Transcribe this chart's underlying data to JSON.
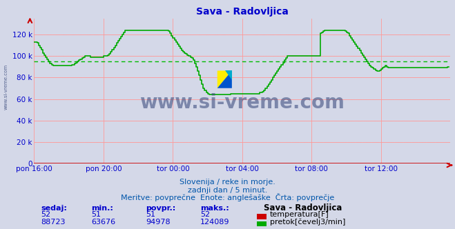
{
  "title": "Sava - Radovljica",
  "title_color": "#0000cc",
  "bg_color": "#d4d8e8",
  "plot_bg_color": "#d4d8e8",
  "grid_color": "#ff9999",
  "avg_line_color": "#00bb00",
  "avg_line_value": 94978,
  "ylabel_color": "#0000cc",
  "xlabel_color": "#0000cc",
  "flow_line_color": "#00aa00",
  "temp_line_color": "#cc0000",
  "watermark_text_color": "#334477",
  "xticklabels": [
    "pon 16:00",
    "pon 20:00",
    "tor 00:00",
    "tor 04:00",
    "tor 08:00",
    "tor 12:00"
  ],
  "xtick_positions": [
    0,
    48,
    96,
    144,
    192,
    240
  ],
  "ylim": [
    0,
    135000
  ],
  "yticks": [
    0,
    20000,
    40000,
    60000,
    80000,
    100000,
    120000
  ],
  "yticklabels": [
    "0",
    "20 k",
    "40 k",
    "60 k",
    "80 k",
    "100 k",
    "120 k"
  ],
  "subtitle1": "Slovenija / reke in morje.",
  "subtitle2": "zadnji dan / 5 minut.",
  "subtitle3": "Meritve: povprečne  Enote: anglešaške  Črta: povprečje",
  "legend_title": "Sava - Radovljica",
  "legend_temp_label": "temperatura[F]",
  "legend_flow_label": "pretok[čevelj3/min]",
  "stats_headers": [
    "sedaj:",
    "min.:",
    "povpr.:",
    "maks.:"
  ],
  "stats_temp": [
    "52",
    "51",
    "51",
    "52"
  ],
  "stats_flow": [
    "88723",
    "63676",
    "94978",
    "124089"
  ],
  "flow_data": [
    113000,
    113000,
    112000,
    110000,
    108000,
    106000,
    103000,
    101000,
    99000,
    97000,
    95000,
    93000,
    92000,
    91000,
    91000,
    91000,
    91000,
    91000,
    91000,
    91000,
    91000,
    91000,
    91000,
    91000,
    91000,
    91000,
    92000,
    92000,
    93000,
    94000,
    95000,
    96000,
    97000,
    98000,
    99000,
    100000,
    100000,
    100000,
    100000,
    99000,
    99000,
    99000,
    99000,
    99000,
    99000,
    99000,
    99000,
    99000,
    100000,
    100000,
    100000,
    101000,
    102000,
    104000,
    106000,
    108000,
    110000,
    112000,
    114000,
    116000,
    118000,
    120000,
    122000,
    124000,
    124000,
    124000,
    124000,
    124000,
    124000,
    124000,
    124000,
    124000,
    124000,
    124000,
    124000,
    124000,
    124000,
    124000,
    124000,
    124000,
    124000,
    124000,
    124000,
    124000,
    124000,
    124000,
    124000,
    124000,
    124000,
    124000,
    124000,
    124000,
    124000,
    123000,
    121000,
    119000,
    117000,
    115000,
    113000,
    111000,
    109000,
    107000,
    105000,
    104000,
    103000,
    102000,
    101000,
    100000,
    99000,
    98000,
    96000,
    93000,
    90000,
    86000,
    82000,
    78000,
    74000,
    70000,
    68000,
    66000,
    65000,
    64000,
    64000,
    64000,
    64000,
    64000,
    64000,
    64000,
    64000,
    64000,
    64000,
    64000,
    64000,
    64000,
    64000,
    64000,
    65000,
    65000,
    65000,
    65000,
    65000,
    65000,
    65000,
    65000,
    65000,
    65000,
    65000,
    65000,
    65000,
    65000,
    65000,
    65000,
    65000,
    65000,
    65000,
    65000,
    66000,
    66000,
    67000,
    68000,
    70000,
    72000,
    74000,
    76000,
    78000,
    80000,
    82000,
    84000,
    86000,
    88000,
    90000,
    92000,
    94000,
    96000,
    98000,
    100000,
    100000,
    100000,
    100000,
    100000,
    100000,
    100000,
    100000,
    100000,
    100000,
    100000,
    100000,
    100000,
    100000,
    100000,
    100000,
    100000,
    100000,
    100000,
    100000,
    100000,
    100000,
    100000,
    121000,
    122000,
    123000,
    124000,
    124000,
    124000,
    124000,
    124000,
    124000,
    124000,
    124000,
    124000,
    124000,
    124000,
    124000,
    124000,
    124000,
    123000,
    122000,
    121000,
    119000,
    117000,
    115000,
    113000,
    111000,
    109000,
    107000,
    105000,
    103000,
    101000,
    99000,
    97000,
    95000,
    93000,
    91000,
    90000,
    89000,
    88000,
    87000,
    86000,
    86000,
    87000,
    88000,
    89000,
    90000,
    91000,
    90000,
    89000,
    89000,
    89000,
    89000,
    89000,
    89000,
    89000,
    89000,
    89000,
    89000,
    89000,
    89000,
    89000,
    89000,
    89000,
    89000,
    89000,
    89000,
    89000,
    89000,
    89000,
    89000,
    89000,
    89000,
    89000,
    89000,
    89000,
    89000,
    89000,
    89000,
    89000,
    89000,
    89000,
    89000,
    89000,
    89000,
    89000,
    89000,
    89000,
    89000,
    89000,
    90000,
    90000
  ]
}
